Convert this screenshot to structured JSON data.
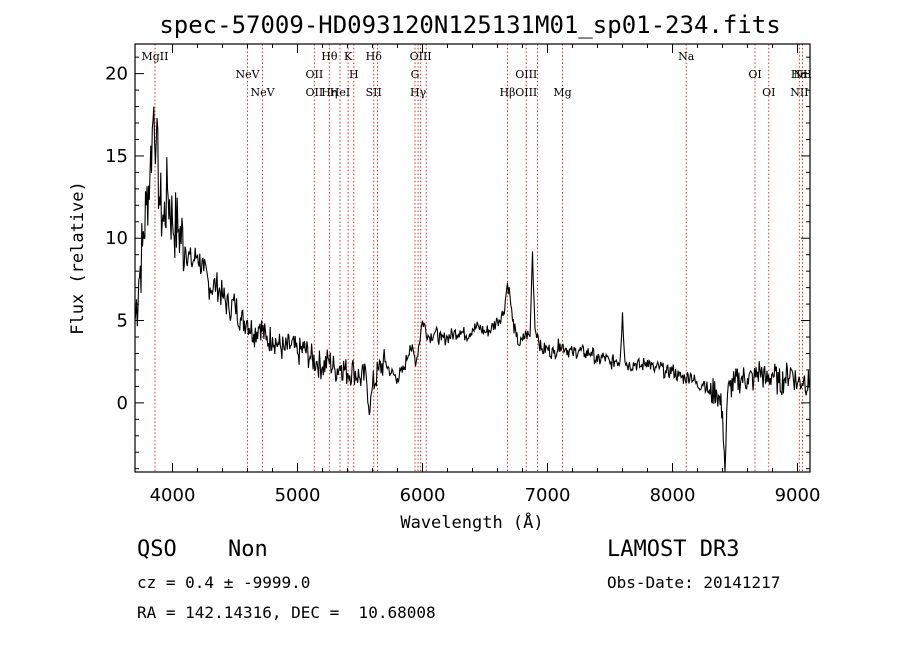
{
  "chart_data": {
    "type": "line",
    "title": "spec-57009-HD093120N125131M01_sp01-234.fits",
    "xlabel": "Wavelength (Å)",
    "ylabel": "Flux (relative)",
    "xlim": [
      3700,
      9100
    ],
    "ylim": [
      -4.2,
      21.8
    ],
    "xticks": [
      4000,
      5000,
      6000,
      7000,
      8000,
      9000
    ],
    "yticks": [
      0,
      5,
      10,
      15,
      20
    ],
    "series": [
      {
        "name": "flux",
        "x": [
          3700,
          3730,
          3760,
          3790,
          3820,
          3850,
          3870,
          3900,
          3930,
          3960,
          4000,
          4050,
          4100,
          4150,
          4200,
          4250,
          4300,
          4350,
          4400,
          4450,
          4500,
          4550,
          4600,
          4650,
          4700,
          4750,
          4800,
          4850,
          4900,
          4950,
          5000,
          5050,
          5100,
          5150,
          5200,
          5250,
          5300,
          5350,
          5400,
          5450,
          5500,
          5550,
          5580,
          5600,
          5650,
          5700,
          5750,
          5800,
          5850,
          5900,
          5950,
          6000,
          6050,
          6100,
          6150,
          6200,
          6250,
          6300,
          6350,
          6400,
          6450,
          6500,
          6550,
          6600,
          6650,
          6680,
          6700,
          6720,
          6750,
          6780,
          6800,
          6830,
          6860,
          6880,
          6900,
          6920,
          6950,
          7000,
          7050,
          7100,
          7150,
          7200,
          7250,
          7300,
          7350,
          7400,
          7450,
          7500,
          7550,
          7580,
          7600,
          7620,
          7650,
          7700,
          7750,
          7800,
          7850,
          7900,
          7950,
          8000,
          8050,
          8100,
          8150,
          8200,
          8250,
          8300,
          8350,
          8400,
          8420,
          8440,
          8460,
          8500,
          8550,
          8600,
          8650,
          8700,
          8750,
          8800,
          8850,
          8900,
          8950,
          9000,
          9050,
          9100
        ],
        "y": [
          5.0,
          7.5,
          9.5,
          12.0,
          14.0,
          18.0,
          16.0,
          12.0,
          11.0,
          13.0,
          11.0,
          10.5,
          9.5,
          8.5,
          9.0,
          8.0,
          7.0,
          7.2,
          6.5,
          5.8,
          6.0,
          5.0,
          5.0,
          4.2,
          4.8,
          3.8,
          4.0,
          3.5,
          3.2,
          3.5,
          3.0,
          3.3,
          2.8,
          2.5,
          2.2,
          2.6,
          2.0,
          2.3,
          1.8,
          2.0,
          1.5,
          1.6,
          -0.5,
          1.0,
          2.0,
          2.5,
          1.8,
          1.5,
          2.0,
          3.5,
          2.5,
          5.0,
          4.0,
          4.3,
          3.8,
          4.0,
          4.2,
          4.4,
          4.1,
          4.5,
          4.6,
          4.3,
          4.5,
          5.0,
          5.5,
          7.3,
          6.5,
          5.0,
          4.0,
          3.5,
          3.8,
          4.2,
          4.0,
          9.2,
          4.5,
          4.2,
          3.2,
          3.3,
          3.0,
          3.6,
          3.3,
          3.0,
          3.2,
          3.0,
          3.1,
          2.5,
          2.8,
          2.4,
          2.6,
          2.5,
          5.5,
          2.5,
          2.3,
          2.4,
          2.2,
          2.6,
          2.0,
          2.2,
          1.8,
          2.0,
          1.6,
          1.5,
          1.7,
          1.0,
          1.3,
          0.5,
          0.8,
          -0.5,
          -4.2,
          0.5,
          1.0,
          1.2,
          1.5,
          1.5,
          1.4,
          2.0,
          1.3,
          1.8,
          1.2,
          1.5,
          2.0,
          1.2,
          1.5,
          1.0
        ]
      }
    ],
    "spectral_lines": [
      {
        "x": 3860,
        "labels": [
          "MgII"
        ]
      },
      {
        "x": 4600,
        "labels": [
          "NeV"
        ]
      },
      {
        "x": 4720,
        "labels": [
          "NeV"
        ]
      },
      {
        "x": 5135,
        "labels": [
          "OII",
          "OII"
        ]
      },
      {
        "x": 5255,
        "labels": [
          "Hθ",
          "Hη"
        ]
      },
      {
        "x": 5340,
        "labels": [
          "HeI"
        ]
      },
      {
        "x": 5405,
        "labels": [
          "K"
        ]
      },
      {
        "x": 5450,
        "labels": [
          "H"
        ]
      },
      {
        "x": 5610,
        "labels": [
          "Hδ",
          "SII"
        ]
      },
      {
        "x": 5640,
        "labels": []
      },
      {
        "x": 5940,
        "labels": [
          "G"
        ]
      },
      {
        "x": 5965,
        "labels": [
          "Hγ"
        ]
      },
      {
        "x": 5985,
        "labels": [
          "OIII"
        ]
      },
      {
        "x": 6030,
        "labels": []
      },
      {
        "x": 6680,
        "labels": [
          "Hβ"
        ]
      },
      {
        "x": 6830,
        "labels": [
          "OIII",
          "OIII"
        ]
      },
      {
        "x": 6920,
        "labels": []
      },
      {
        "x": 7120,
        "labels": [
          "Mg"
        ]
      },
      {
        "x": 8110,
        "labels": [
          "Na"
        ]
      },
      {
        "x": 8660,
        "labels": [
          "OI"
        ]
      },
      {
        "x": 8770,
        "labels": [
          "OI"
        ]
      },
      {
        "x": 9015,
        "labels": [
          "Hα",
          "NII"
        ]
      },
      {
        "x": 9040,
        "labels": [
          "NII"
        ]
      }
    ]
  },
  "info": {
    "class_label": "QSO",
    "subclass_label": "Non",
    "survey": "LAMOST DR3",
    "cz_line": "cz = 0.4 ± -9999.0",
    "obs_date_line": "Obs-Date: 20141217",
    "coords_line": "RA = 142.14316, DEC =  10.68008"
  }
}
